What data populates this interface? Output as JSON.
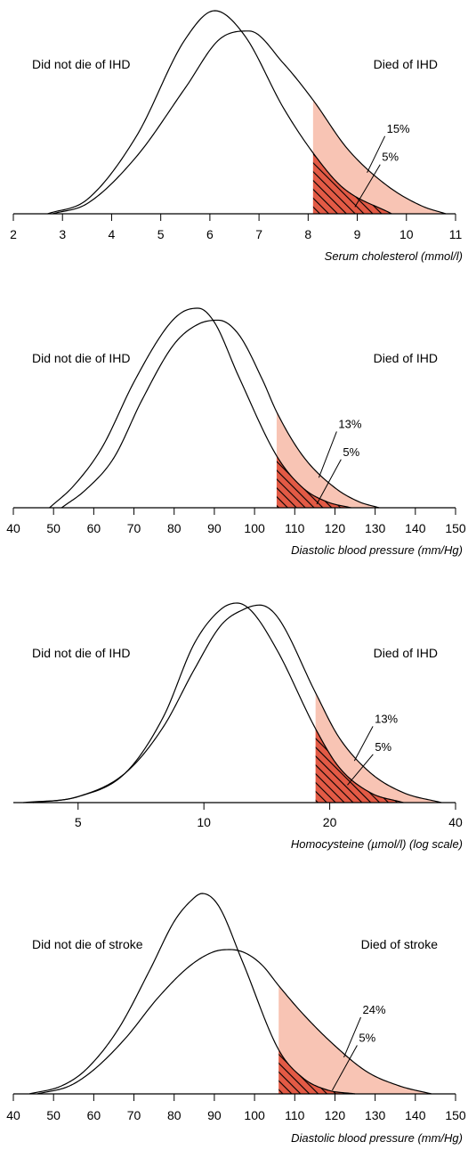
{
  "colors": {
    "tail_fill": "#f8c4b4",
    "hatch_fill": "#e35a45",
    "hatch_stroke": "#000000",
    "curve": "#000000"
  },
  "chart_data": [
    {
      "type": "area",
      "description_axis": "density",
      "left_label": "Did not die of IHD",
      "right_label": "Died of IHD",
      "xlabel": "Serum cholesterol (mmol/l)",
      "xlim": [
        2,
        11
      ],
      "x_scale": "linear",
      "ticks": [
        2,
        3,
        4,
        5,
        6,
        7,
        8,
        9,
        10,
        11
      ],
      "tick_labels": [
        "2",
        "3",
        "4",
        "5",
        "6",
        "7",
        "8",
        "9",
        "10",
        "11"
      ],
      "cutoff": 8.1,
      "series": [
        {
          "name": "Did not die of IHD",
          "x": [
            2.7,
            3.5,
            4.5,
            5.5,
            6.1,
            6.7,
            7.5,
            8.1,
            8.7,
            9.7
          ],
          "y": [
            0,
            0.07,
            0.38,
            0.86,
            1.0,
            0.88,
            0.52,
            0.3,
            0.13,
            0
          ]
        },
        {
          "name": "Died of IHD",
          "x": [
            2.8,
            3.5,
            4.5,
            5.5,
            6.2,
            6.8,
            7.5,
            8.1,
            8.8,
            9.6,
            10.3,
            10.8
          ],
          "y": [
            0,
            0.05,
            0.28,
            0.62,
            0.86,
            0.9,
            0.74,
            0.56,
            0.32,
            0.14,
            0.04,
            0
          ]
        }
      ],
      "annotations": [
        {
          "text": "15%",
          "at": 9.2
        },
        {
          "text": "5%",
          "at": 8.85
        }
      ]
    },
    {
      "type": "area",
      "left_label": "Did not die of IHD",
      "right_label": "Died of IHD",
      "xlabel": "Diastolic blood pressure (mm/Hg)",
      "xlim": [
        40,
        150
      ],
      "x_scale": "linear",
      "ticks": [
        40,
        50,
        60,
        70,
        80,
        90,
        100,
        110,
        120,
        130,
        140,
        150
      ],
      "tick_labels": [
        "40",
        "50",
        "60",
        "70",
        "80",
        "90",
        "100",
        "110",
        "120",
        "130",
        "140",
        "150"
      ],
      "cutoff": 105.5,
      "series": [
        {
          "name": "Did not die of IHD",
          "x": [
            49,
            55,
            62,
            70,
            78,
            82,
            86,
            90,
            96,
            105.5,
            112,
            118,
            124
          ],
          "y": [
            0,
            0.11,
            0.3,
            0.63,
            0.9,
            0.98,
            1.0,
            0.93,
            0.66,
            0.26,
            0.1,
            0.03,
            0
          ]
        },
        {
          "name": "Died of IHD",
          "x": [
            52,
            58,
            65,
            72,
            80,
            86,
            91,
            96,
            102,
            105.5,
            112,
            120,
            126,
            131
          ],
          "y": [
            0,
            0.09,
            0.25,
            0.54,
            0.82,
            0.92,
            0.94,
            0.87,
            0.64,
            0.48,
            0.26,
            0.1,
            0.03,
            0
          ]
        }
      ],
      "annotations": [
        {
          "text": "13%",
          "at": 116
        },
        {
          "text": "5%",
          "at": 114
        }
      ]
    },
    {
      "type": "area",
      "left_label": "Did not die of IHD",
      "right_label": "Died of IHD",
      "xlabel": "Homocysteine (µmol/l) (log scale)",
      "xlim": [
        3.5,
        40
      ],
      "x_scale": "log",
      "ticks": [
        5,
        10,
        20,
        40
      ],
      "tick_labels": [
        "5",
        "10",
        "20",
        "40"
      ],
      "cutoff": 18.5,
      "series": [
        {
          "name": "Did not die of IHD",
          "x": [
            3.7,
            5,
            6.5,
            8,
            9.5,
            11,
            12,
            13,
            15,
            18.5,
            21,
            25,
            30
          ],
          "y": [
            0,
            0.03,
            0.15,
            0.43,
            0.8,
            0.97,
            1.0,
            0.96,
            0.76,
            0.37,
            0.18,
            0.05,
            0
          ]
        },
        {
          "name": "Died of IHD",
          "x": [
            3.9,
            5,
            6.5,
            8,
            9.5,
            11,
            12.5,
            13.6,
            15,
            18.5,
            21,
            25,
            30,
            37
          ],
          "y": [
            0,
            0.03,
            0.15,
            0.38,
            0.67,
            0.89,
            0.97,
            0.99,
            0.93,
            0.55,
            0.33,
            0.15,
            0.05,
            0
          ]
        }
      ],
      "annotations": [
        {
          "text": "13%",
          "at": 23
        },
        {
          "text": "5%",
          "at": 21.5
        }
      ]
    },
    {
      "type": "area",
      "left_label": "Did not die of stroke",
      "right_label": "Died of stroke",
      "xlabel": "Diastolic blood pressure (mm/Hg)",
      "xlim": [
        40,
        150
      ],
      "x_scale": "linear",
      "ticks": [
        40,
        50,
        60,
        70,
        80,
        90,
        100,
        110,
        120,
        130,
        140,
        150
      ],
      "tick_labels": [
        "40",
        "50",
        "60",
        "70",
        "80",
        "90",
        "100",
        "110",
        "120",
        "130",
        "140",
        "150"
      ],
      "cutoff": 106,
      "series": [
        {
          "name": "Did not die of stroke",
          "x": [
            44,
            52,
            58,
            66,
            74,
            80,
            84,
            87,
            91,
            97,
            106,
            112,
            118,
            125
          ],
          "y": [
            0,
            0.04,
            0.12,
            0.32,
            0.62,
            0.86,
            0.96,
            1.0,
            0.94,
            0.66,
            0.22,
            0.08,
            0.02,
            0
          ]
        },
        {
          "name": "Died of stroke",
          "x": [
            46,
            54,
            60,
            68,
            76,
            84,
            90,
            94,
            98,
            102,
            106,
            112,
            120,
            128,
            136,
            144
          ],
          "y": [
            0,
            0.04,
            0.12,
            0.28,
            0.48,
            0.64,
            0.71,
            0.72,
            0.7,
            0.64,
            0.54,
            0.4,
            0.24,
            0.11,
            0.04,
            0
          ]
        }
      ],
      "annotations": [
        {
          "text": "24%",
          "at": 122
        },
        {
          "text": "5%",
          "at": 118
        }
      ]
    }
  ]
}
